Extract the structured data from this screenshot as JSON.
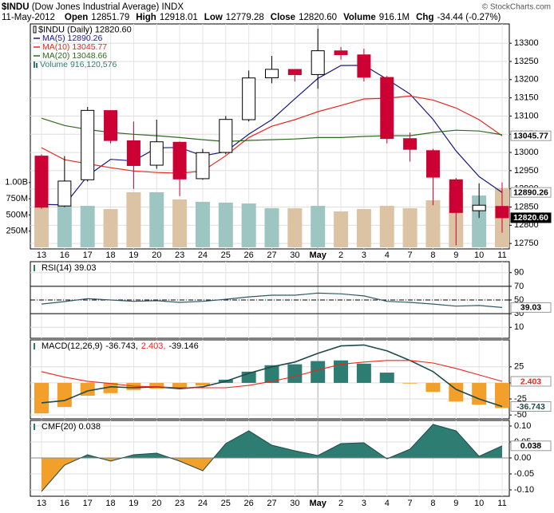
{
  "header": {
    "symbol": "$INDU",
    "name": "(Dow Jones Industrial Average)",
    "exchange": "INDX",
    "date": "11-May-2012",
    "fields": [
      {
        "label": "Open",
        "value": "12851.79"
      },
      {
        "label": "High",
        "value": "12918.01"
      },
      {
        "label": "Low",
        "value": "12779.28"
      },
      {
        "label": "Close",
        "value": "12820.60"
      },
      {
        "label": "Volume",
        "value": "916.1M"
      },
      {
        "label": "Chg",
        "value": "-34.44 (-0.27%)"
      }
    ],
    "credit": "© StockCharts.com"
  },
  "chart_data": [
    {
      "type": "candlestick",
      "name": "$INDU (Daily) 12820.60",
      "last_label": "12820.60",
      "categories": [
        "13",
        "16",
        "17",
        "18",
        "19",
        "20",
        "23",
        "24",
        "25",
        "26",
        "27",
        "30",
        "May",
        "2",
        "3",
        "4",
        "7",
        "8",
        "9",
        "10",
        "11"
      ],
      "open": [
        12990,
        12853,
        12925,
        13115,
        13032,
        12965,
        13028,
        12928,
        13000,
        13090,
        13205,
        13228,
        13214,
        13279,
        13268,
        13206,
        13038,
        13005,
        12925,
        12840,
        12851.79
      ],
      "high": [
        12995,
        12990,
        13125,
        13115,
        13085,
        13090,
        13030,
        13010,
        13100,
        13225,
        13265,
        13228,
        13340,
        13290,
        13285,
        13210,
        13055,
        13010,
        12930,
        12915,
        12918.01
      ],
      "low": [
        12845,
        12850,
        12920,
        13025,
        12900,
        12955,
        12880,
        12925,
        12995,
        13085,
        13190,
        13195,
        13175,
        13255,
        13195,
        13025,
        12975,
        12855,
        12745,
        12820,
        12779.28
      ],
      "close": [
        12849.59,
        12921.41,
        13115.54,
        13032.75,
        12964.1,
        13029.26,
        12927.17,
        12999.51,
        13090.72,
        13204.62,
        13228.31,
        13213.63,
        13279.32,
        13268.57,
        13206.59,
        13038.27,
        13008.53,
        12932.09,
        12835.06,
        12855.04,
        12820.6
      ],
      "up_color": "#ffffff",
      "up_stroke": "#000000",
      "down_color": "#cc0033",
      "ylim": [
        12735,
        13353
      ],
      "yticks": [
        12750,
        12800,
        12850,
        12900,
        12950,
        13000,
        13050,
        13100,
        13150,
        13200,
        13250,
        13300
      ],
      "grid": true,
      "overlays": [
        {
          "name": "MA(5) 12890.26",
          "color": "#1a1a80",
          "show_last": true,
          "values": [
            12857.42,
            12855.78,
            12935.7,
            12981.17,
            12976.68,
            13012.61,
            13013.76,
            12990.56,
            13002.15,
            13050.26,
            13090.07,
            13147.36,
            13203.32,
            13238.89,
            13239.28,
            13201.28,
            13160.26,
            13090.81,
            13004.11,
            12933.8,
            12890.26
          ]
        },
        {
          "name": "MA(10) 13045.77",
          "color": "#e8281e",
          "show_last": true,
          "values": [
            13013,
            12980,
            12969,
            12958,
            12949,
            12945,
            12943,
            12949,
            12991,
            13041,
            13072,
            13090,
            13112,
            13129,
            13147,
            13149,
            13155,
            13144,
            13122,
            13090,
            13045.77
          ]
        },
        {
          "name": "MA(20) 13048.66",
          "color": "#2e6b1f",
          "show_last": false,
          "values": [
            13094,
            13074,
            13063,
            13055,
            13050,
            13046,
            13041,
            13035,
            13030,
            13033,
            13035,
            13037,
            13041,
            13041,
            13044,
            13046,
            13046,
            13055,
            13061,
            13059,
            13048.66
          ]
        }
      ],
      "volume": {
        "name": "Volume 916,120,576",
        "ylim": [
          -25,
          3450
        ],
        "yticks": [
          {
            "value": 250,
            "label": "250M"
          },
          {
            "value": 500,
            "label": "500M"
          },
          {
            "value": 750,
            "label": "750M"
          },
          {
            "value": 1000,
            "label": "1.00B"
          }
        ],
        "values": [
          628,
          640,
          640,
          591,
          850,
          850,
          739,
          702,
          690,
          677,
          603,
          603,
          640,
          554,
          591,
          640,
          603,
          727,
          850,
          800,
          916.12
        ],
        "colors": [
          "#dcc3a3",
          "#9dc6c2",
          "#9dc6c2",
          "#dcc3a3",
          "#dcc3a3",
          "#9dc6c2",
          "#dcc3a3",
          "#9dc6c2",
          "#9dc6c2",
          "#9dc6c2",
          "#9dc6c2",
          "#dcc3a3",
          "#9dc6c2",
          "#dcc3a3",
          "#dcc3a3",
          "#dcc3a3",
          "#dcc3a3",
          "#dcc3a3",
          "#dcc3a3",
          "#9dc6c2",
          "#dcc3a3"
        ],
        "legend_color": "#2e7d72"
      }
    },
    {
      "type": "line",
      "title": "RSI(14) 39.03",
      "ylim": [
        -6,
        106
      ],
      "yticks": [
        10,
        30,
        50,
        70,
        90
      ],
      "reference_lines": [
        {
          "value": 70,
          "style": "solid"
        },
        {
          "value": 50,
          "style": "dashdot"
        },
        {
          "value": 30,
          "style": "solid"
        }
      ],
      "series": [
        {
          "color": "#2f5a66",
          "values": [
            44,
            47.7,
            52,
            50,
            48,
            49,
            46.5,
            48,
            51,
            54.6,
            57,
            57,
            60,
            59,
            56,
            48,
            46.5,
            44,
            41,
            42,
            39.03
          ]
        }
      ]
    },
    {
      "type": "macd",
      "title": "MACD(12,26,9)",
      "ylim": [
        -56,
        67
      ],
      "yticks": [
        -50,
        -25,
        0,
        25
      ],
      "series": [
        {
          "name": "-36.743,",
          "color": "#1f4a4a",
          "values": [
            -31,
            -27.5,
            -12.5,
            -6,
            -7.5,
            -6,
            -9,
            -6,
            2.5,
            15,
            25,
            32.5,
            46,
            57.5,
            59,
            50,
            35,
            17.5,
            -10,
            -25,
            -36.743
          ]
        },
        {
          "name": "2.403,",
          "color": "#e8281e",
          "values": [
            17.5,
            9,
            2.5,
            -1,
            -5,
            -6,
            -7.5,
            -7.5,
            -7.5,
            -4,
            2.5,
            10,
            20,
            29,
            32.5,
            35,
            35,
            31,
            22.5,
            12.5,
            2.403
          ]
        },
        {
          "name": "-39.146",
          "color": "#2e7d72",
          "negative_color": "#f2a02a",
          "values": [
            -47.5,
            -37.5,
            -20,
            -16,
            -11,
            -9,
            -8,
            -4,
            5,
            17.5,
            27.5,
            29,
            34,
            35,
            30,
            16,
            -1,
            -14,
            -29,
            -34,
            -39.146
          ]
        }
      ]
    },
    {
      "type": "area",
      "title": "CMF(20) 0.038",
      "ylim": [
        -0.12,
        0.1175
      ],
      "yticks": [
        {
          "value": -0.1,
          "label": "-0.10"
        },
        {
          "value": -0.05,
          "label": "-0.05"
        },
        {
          "value": 0,
          "label": "0.00"
        },
        {
          "value": 0.05,
          "label": "0.05"
        },
        {
          "value": 0.1,
          "label": "0.10"
        }
      ],
      "color": "#2e7d72",
      "negative_color": "#f2a02a",
      "line_color": "#1f4a4a",
      "values": [
        -0.105,
        -0.0225,
        0.01,
        -0.01,
        0.01,
        0.015,
        -0.01,
        -0.04,
        0.045,
        0.085,
        0.04,
        0.0225,
        0.0075,
        0.045,
        0.0475,
        -0.0025,
        0.0275,
        0.105,
        0.085,
        0.005,
        0.038
      ]
    }
  ]
}
